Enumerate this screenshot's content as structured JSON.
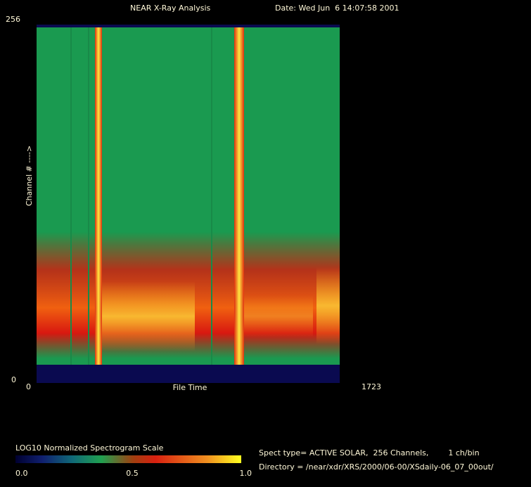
{
  "header": {
    "title": "NEAR X-Ray Analysis",
    "date": "Date: Wed Jun  6 14:07:58 2001"
  },
  "plot": {
    "y_axis_label": "Channel # ---->",
    "y_top": "256",
    "y_bottom": "0",
    "x_left": "0",
    "x_right": "1723",
    "x_axis_label": "File Time"
  },
  "colorbar": {
    "title": "LOG10 Normalized Spectrogram Scale",
    "labels": [
      "0.0",
      "0.5",
      "1.0"
    ]
  },
  "info": {
    "spect_type": "Spect type= ACTIVE SOLAR,  256 Channels,        1 ch/bin",
    "directory": "Directory = /near/xdr/XRS/2000/06-00/XSdaily-06_07_00out/"
  }
}
